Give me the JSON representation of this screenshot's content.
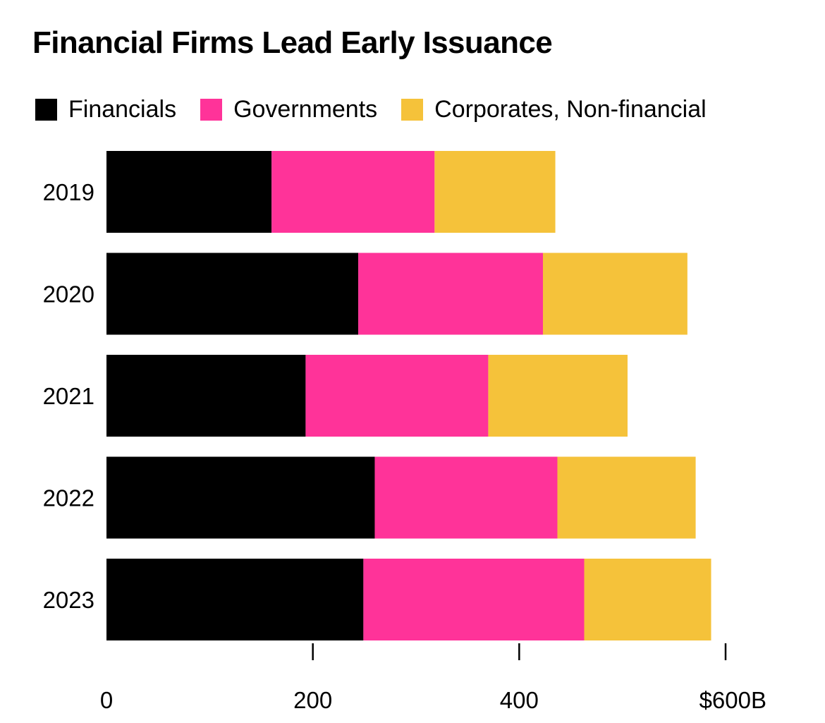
{
  "chart_data": {
    "type": "bar",
    "orientation": "horizontal",
    "stacked": true,
    "title": "Financial Firms Lead Early Issuance",
    "categories": [
      "2019",
      "2020",
      "2021",
      "2022",
      "2023"
    ],
    "series": [
      {
        "name": "Financials",
        "color": "#000000",
        "values": [
          160,
          244,
          193,
          260,
          249
        ]
      },
      {
        "name": "Governments",
        "color": "#ff3399",
        "values": [
          158,
          179,
          177,
          177,
          214
        ]
      },
      {
        "name": "Corporates, Non-financial",
        "color": "#f5c23a",
        "values": [
          117,
          140,
          135,
          134,
          123
        ]
      }
    ],
    "xlim": [
      0,
      600
    ],
    "xticks": [
      0,
      200,
      400,
      600
    ],
    "xtick_labels": [
      "0",
      "200",
      "400",
      "$600B"
    ],
    "xlabel": "",
    "ylabel": "",
    "grid": false,
    "legend_position": "top-left"
  }
}
